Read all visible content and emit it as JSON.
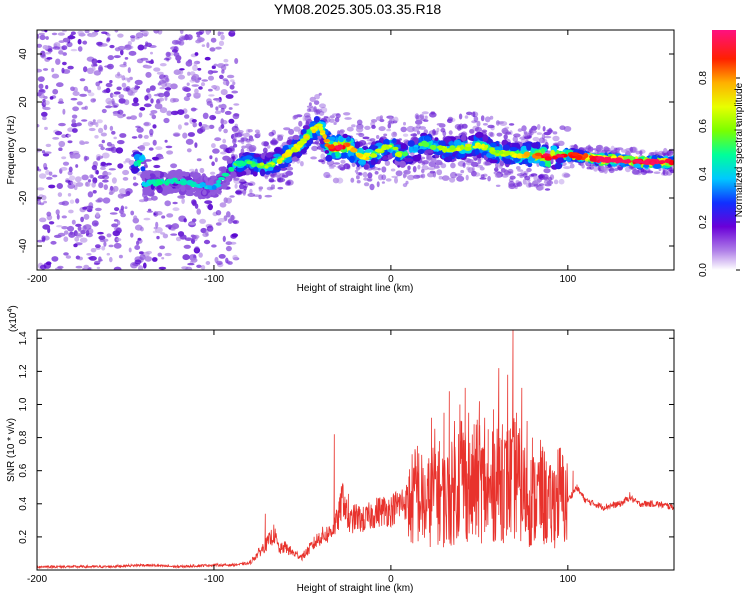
{
  "title": "YM08.2025.305.03.35.R18",
  "chart_data": [
    {
      "type": "heatmap",
      "title": "YM08.2025.305.03.35.R18",
      "xlabel": "Height of straight line (km)",
      "ylabel": "Frequency (Hz)",
      "xlim": [
        -200,
        160
      ],
      "ylim": [
        -50,
        50
      ],
      "xticks": [
        -200,
        -100,
        0,
        100
      ],
      "yticks": [
        -40,
        -20,
        0,
        20,
        40
      ],
      "colorbar": {
        "label": "Normalized spectral amplitude",
        "range": [
          0,
          1
        ],
        "ticks": [
          "0.0",
          "0.2",
          "0.4",
          "0.6",
          "0.8"
        ],
        "colormap": [
          "#ffffff",
          "#a070e0",
          "#5500d0",
          "#0040ff",
          "#00d0ff",
          "#00ff80",
          "#a0ff00",
          "#ffff00",
          "#ff8000",
          "#ff0000",
          "#ff1060"
        ]
      },
      "ridge": {
        "x": [
          -140,
          -120,
          -100,
          -88,
          -80,
          -70,
          -60,
          -50,
          -45,
          -40,
          -35,
          -30,
          -25,
          -20,
          -15,
          -10,
          -5,
          0,
          5,
          10,
          20,
          30,
          40,
          50,
          60,
          70,
          80,
          90,
          100,
          110,
          120,
          130,
          140,
          150,
          160
        ],
        "y": [
          -14,
          -13,
          -16,
          -6,
          -5,
          -7,
          -3,
          3,
          8,
          10,
          1,
          1,
          2,
          -1,
          -3,
          -2,
          0,
          2,
          -2,
          -1,
          3,
          0,
          1,
          2,
          -1,
          -2,
          -2,
          -3,
          -2,
          -3,
          -4,
          -4,
          -5,
          -5,
          -5
        ],
        "amplitude": [
          0.3,
          0.3,
          0.25,
          0.35,
          0.4,
          0.45,
          0.55,
          0.5,
          0.6,
          0.5,
          0.7,
          0.85,
          0.7,
          0.6,
          0.55,
          0.5,
          0.45,
          0.55,
          0.45,
          0.4,
          0.45,
          0.45,
          0.5,
          0.5,
          0.45,
          0.5,
          0.6,
          0.85,
          0.75,
          0.7,
          0.9,
          0.9,
          0.95,
          0.85,
          0.8
        ]
      }
    },
    {
      "type": "line",
      "xlabel": "Height of straight line (km)",
      "ylabel": "SNR (10 * v/v)",
      "y_multiplier": "(x10",
      "y_multiplier_exp": "4",
      "xlim": [
        -200,
        160
      ],
      "ylim": [
        0,
        1.45
      ],
      "xticks": [
        -200,
        -100,
        0,
        100
      ],
      "yticks": [
        "0.2",
        "0.4",
        "0.6",
        "0.8",
        "1.0",
        "1.2",
        "1.4"
      ],
      "series": [
        {
          "name": "SNR",
          "color": "#e8322c",
          "x": [
            -200,
            -180,
            -160,
            -140,
            -120,
            -100,
            -90,
            -80,
            -75,
            -70,
            -66,
            -63,
            -60,
            -55,
            -50,
            -45,
            -40,
            -35,
            -30,
            -27,
            -24,
            -20,
            -15,
            -10,
            -5,
            0,
            5,
            10,
            15,
            20,
            25,
            30,
            35,
            40,
            45,
            50,
            55,
            60,
            65,
            70,
            75,
            80,
            85,
            90,
            95,
            100,
            105,
            110,
            120,
            130,
            135,
            140,
            150,
            160
          ],
          "y": [
            0.02,
            0.02,
            0.02,
            0.03,
            0.02,
            0.03,
            0.03,
            0.04,
            0.1,
            0.16,
            0.22,
            0.12,
            0.14,
            0.1,
            0.08,
            0.14,
            0.2,
            0.22,
            0.3,
            0.45,
            0.28,
            0.32,
            0.3,
            0.34,
            0.36,
            0.36,
            0.4,
            0.42,
            0.5,
            0.4,
            0.55,
            0.45,
            0.5,
            0.65,
            0.5,
            0.6,
            0.45,
            0.62,
            0.55,
            0.6,
            0.5,
            0.45,
            0.5,
            0.4,
            0.5,
            0.42,
            0.5,
            0.42,
            0.38,
            0.4,
            0.44,
            0.4,
            0.4,
            0.38
          ],
          "spikes": {
            "x": [
              -71,
              -32,
              -24,
              15,
              23,
              30,
              33,
              36,
              39,
              42,
              44,
              47,
              50,
              53,
              55,
              58,
              61,
              63,
              66,
              69,
              71,
              74,
              77,
              80,
              85,
              90,
              103,
              135
            ],
            "y": [
              0.34,
              0.82,
              0.46,
              0.75,
              0.92,
              0.95,
              1.08,
              0.9,
              1.0,
              1.1,
              0.95,
              0.88,
              1.02,
              0.92,
              0.85,
              0.97,
              1.22,
              0.88,
              1.18,
              1.45,
              0.95,
              1.1,
              0.9,
              0.8,
              0.68,
              0.62,
              0.6,
              0.47
            ]
          }
        }
      ]
    }
  ]
}
